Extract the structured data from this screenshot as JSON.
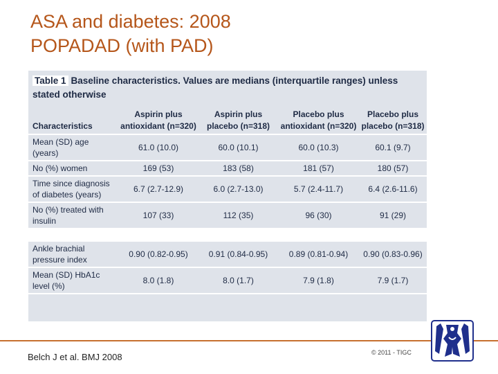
{
  "slide": {
    "title_line1": "ASA and diabetes: 2008",
    "title_line2": "POPADAD (with PAD)",
    "reference": "Belch J et al. BMJ 2008",
    "copyright": "© 2011 - TIGC"
  },
  "table": {
    "label": "Table 1",
    "caption": "Baseline characteristics. Values are medians (interquartile ranges) unless stated otherwise",
    "headers": [
      "Characteristics",
      "Aspirin plus antioxidant (n=320)",
      "Aspirin plus placebo (n=318)",
      "Placebo plus antioxidant (n=320)",
      "Placebo plus placebo (n=318)"
    ],
    "rows": [
      [
        "Mean (SD) age (years)",
        "61.0 (10.0)",
        "60.0 (10.1)",
        "60.0 (10.3)",
        "60.1 (9.7)"
      ],
      [
        "No (%) women",
        "169 (53)",
        "183 (58)",
        "181 (57)",
        "180 (57)"
      ],
      [
        "Time since diagnosis of diabetes (years)",
        "6.7 (2.7-12.9)",
        "6.0 (2.7-13.0)",
        "5.7 (2.4-11.7)",
        "6.4 (2.6-11.6)"
      ],
      [
        "No (%) treated with insulin",
        "107 (33)",
        "112 (35)",
        "96 (30)",
        "91 (29)"
      ]
    ],
    "rows2": [
      [
        "Ankle brachial pressure index",
        "0.90 (0.82-0.95)",
        "0.91 (0.84-0.95)",
        "0.89 (0.81-0.94)",
        "0.90 (0.83-0.96)"
      ],
      [
        "Mean (SD) HbA1c level (%)",
        "8.0 (1.8)",
        "8.0 (1.7)",
        "7.9 (1.8)",
        "7.9 (1.7)"
      ]
    ]
  },
  "colors": {
    "title": "#b5561a",
    "table_bg": "#dfe3ea",
    "table_text": "#1e2a44",
    "divider": "#c66f2e",
    "logo": "#1f2f8c"
  }
}
